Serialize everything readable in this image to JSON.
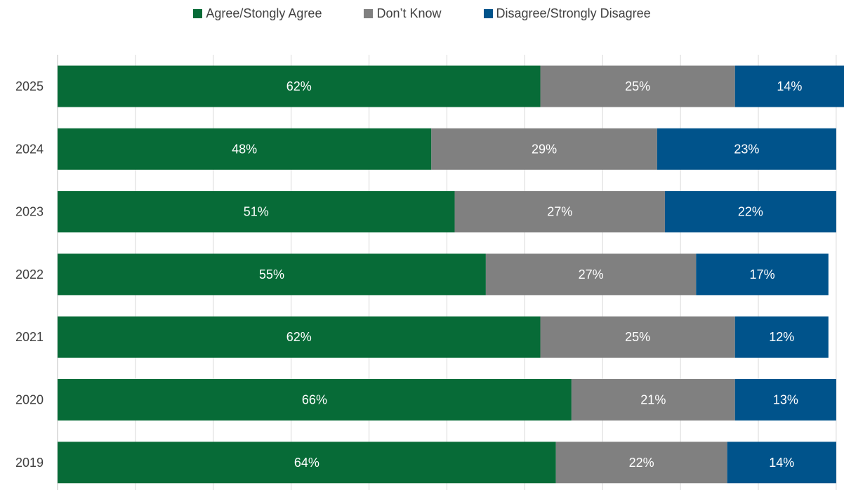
{
  "chart_data": {
    "type": "bar",
    "orientation": "horizontal",
    "stacked": true,
    "categories": [
      "2025",
      "2024",
      "2023",
      "2022",
      "2021",
      "2020",
      "2019"
    ],
    "series": [
      {
        "name": "Agree/Stongly Agree",
        "color": "#076b37",
        "values": [
          62,
          48,
          51,
          55,
          62,
          66,
          64
        ]
      },
      {
        "name": "Don’t Know",
        "color": "#808080",
        "values": [
          25,
          29,
          27,
          27,
          25,
          21,
          22
        ]
      },
      {
        "name": "Disagree/Strongly Disagree",
        "color": "#00538b",
        "values": [
          14,
          23,
          22,
          17,
          12,
          13,
          14
        ]
      }
    ],
    "data_labels": [
      [
        "62%",
        "25%",
        "14%"
      ],
      [
        "48%",
        "29%",
        "23%"
      ],
      [
        "51%",
        "27%",
        "22%"
      ],
      [
        "55%",
        "27%",
        "17%"
      ],
      [
        "62%",
        "25%",
        "12%"
      ],
      [
        "66%",
        "21%",
        "13%"
      ],
      [
        "64%",
        "22%",
        "14%"
      ]
    ],
    "xlim": [
      0,
      100
    ],
    "grid": true,
    "legend_position": "top-center"
  }
}
